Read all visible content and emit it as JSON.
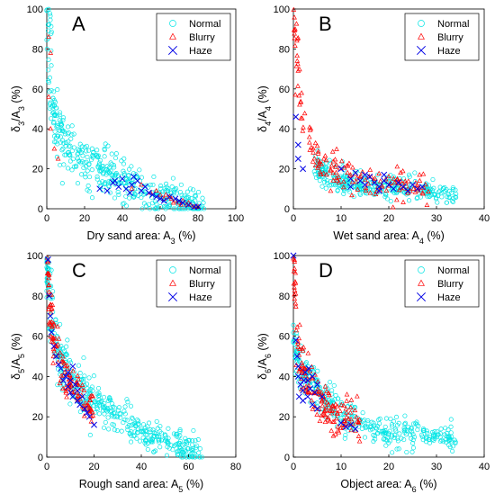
{
  "chart_data": [
    {
      "type": "scatter",
      "panel_label": "A",
      "xlabel": "Dry sand area: A",
      "xlabel_sub": "3",
      "xlabel_unit": " (%)",
      "ylabel": "δ",
      "ylabel_sub": "3",
      "ylabel_mid": "/A",
      "ylabel_sub2": "3",
      "ylabel_unit": " (%)",
      "xlim": [
        0,
        100
      ],
      "ylim": [
        0,
        100
      ],
      "xticks": [
        "0",
        "20",
        "40",
        "60",
        "80",
        "100"
      ],
      "yticks": [
        "0",
        "20",
        "40",
        "60",
        "80",
        "100"
      ],
      "legend_position": "top-right",
      "series": [
        {
          "name": "Normal",
          "color": "#00e5e5",
          "marker": "circle",
          "trend": [
            [
              0,
              100
            ],
            [
              1,
              85
            ],
            [
              2,
              62
            ],
            [
              4,
              46
            ],
            [
              8,
              34
            ],
            [
              15,
              27
            ],
            [
              25,
              21
            ],
            [
              35,
              16
            ],
            [
              45,
              12
            ],
            [
              55,
              8
            ],
            [
              62,
              6
            ],
            [
              70,
              4
            ],
            [
              78,
              2
            ],
            [
              82,
              0
            ]
          ],
          "count": 420,
          "spread": 7
        },
        {
          "name": "Blurry",
          "color": "#ff0000",
          "marker": "triangle",
          "points": [
            [
              1,
              86
            ],
            [
              2,
              78
            ],
            [
              1,
              56
            ],
            [
              2,
              40
            ],
            [
              4,
              30
            ],
            [
              6,
              25
            ],
            [
              45,
              10
            ],
            [
              50,
              12
            ],
            [
              55,
              8
            ],
            [
              60,
              7
            ],
            [
              62,
              5
            ],
            [
              65,
              6
            ],
            [
              68,
              4
            ],
            [
              70,
              3
            ],
            [
              72,
              4
            ],
            [
              74,
              2
            ],
            [
              76,
              2
            ],
            [
              78,
              1
            ],
            [
              80,
              1
            ],
            [
              66,
              5
            ],
            [
              58,
              9
            ],
            [
              63,
              7
            ],
            [
              67,
              3
            ],
            [
              71,
              2
            ],
            [
              75,
              3
            ]
          ]
        },
        {
          "name": "Haze",
          "color": "#0000e5",
          "marker": "x",
          "points": [
            [
              28,
              10
            ],
            [
              32,
              9
            ],
            [
              35,
              13
            ],
            [
              38,
              11
            ],
            [
              40,
              15
            ],
            [
              42,
              10
            ],
            [
              45,
              12
            ],
            [
              48,
              14
            ],
            [
              50,
              9
            ],
            [
              52,
              11
            ],
            [
              54,
              8
            ],
            [
              56,
              7
            ],
            [
              58,
              6
            ],
            [
              60,
              5
            ],
            [
              62,
              4
            ],
            [
              65,
              6
            ],
            [
              68,
              5
            ],
            [
              70,
              4
            ],
            [
              72,
              3
            ],
            [
              75,
              2
            ],
            [
              78,
              1
            ],
            [
              80,
              1
            ],
            [
              46,
              16
            ],
            [
              36,
              14
            ],
            [
              44,
              8
            ]
          ]
        }
      ]
    },
    {
      "type": "scatter",
      "panel_label": "B",
      "xlabel": "Wet sand area: A",
      "xlabel_sub": "4",
      "xlabel_unit": " (%)",
      "ylabel": "δ",
      "ylabel_sub": "4",
      "ylabel_mid": "/A",
      "ylabel_sub2": "4",
      "ylabel_unit": " (%)",
      "xlim": [
        0,
        40
      ],
      "ylim": [
        0,
        100
      ],
      "xticks": [
        "0",
        "10",
        "20",
        "30",
        "40"
      ],
      "yticks": [
        "0",
        "20",
        "40",
        "60",
        "80",
        "100"
      ],
      "legend_position": "top-right",
      "series": [
        {
          "name": "Normal",
          "color": "#00e5e5",
          "marker": "circle",
          "trend": [
            [
              5,
              20
            ],
            [
              8,
              16
            ],
            [
              12,
              14
            ],
            [
              16,
              12
            ],
            [
              20,
              11
            ],
            [
              25,
              10
            ],
            [
              30,
              8
            ],
            [
              34,
              7
            ]
          ],
          "count": 320,
          "spread": 4
        },
        {
          "name": "Blurry",
          "color": "#ff0000",
          "marker": "triangle",
          "trend": [
            [
              0,
              98
            ],
            [
              0.5,
              80
            ],
            [
              1,
              62
            ],
            [
              2,
              48
            ],
            [
              3,
              38
            ],
            [
              4,
              30
            ],
            [
              6,
              24
            ],
            [
              8,
              19
            ],
            [
              12,
              15
            ],
            [
              16,
              13
            ],
            [
              20,
              12
            ],
            [
              25,
              11
            ],
            [
              28,
              10
            ]
          ],
          "count": 160,
          "spread": 6
        },
        {
          "name": "Haze",
          "color": "#0000e5",
          "marker": "x",
          "points": [
            [
              0.5,
              46
            ],
            [
              1,
              32
            ],
            [
              1,
              25
            ],
            [
              2,
              20
            ],
            [
              10,
              20
            ],
            [
              12,
              15
            ],
            [
              13,
              18
            ],
            [
              14,
              14
            ],
            [
              15,
              12
            ],
            [
              16,
              16
            ],
            [
              17,
              13
            ],
            [
              18,
              11
            ],
            [
              19,
              14
            ],
            [
              20,
              12
            ],
            [
              21,
              10
            ],
            [
              22,
              13
            ],
            [
              23,
              11
            ],
            [
              24,
              9
            ],
            [
              25,
              12
            ],
            [
              26,
              10
            ],
            [
              27,
              11
            ],
            [
              15,
              17
            ],
            [
              19,
              17
            ],
            [
              12,
              11
            ],
            [
              18,
              9
            ]
          ]
        }
      ]
    },
    {
      "type": "scatter",
      "panel_label": "C",
      "xlabel": "Rough sand area: A",
      "xlabel_sub": "5",
      "xlabel_unit": " (%)",
      "ylabel": "δ",
      "ylabel_sub": "5",
      "ylabel_mid": "/A",
      "ylabel_sub2": "5",
      "ylabel_unit": " (%)",
      "xlim": [
        0,
        80
      ],
      "ylim": [
        0,
        100
      ],
      "xticks": [
        "0",
        "20",
        "40",
        "60",
        "80"
      ],
      "yticks": [
        "0",
        "20",
        "40",
        "60",
        "80",
        "100"
      ],
      "legend_position": "top-right",
      "series": [
        {
          "name": "Normal",
          "color": "#00e5e5",
          "marker": "circle",
          "trend": [
            [
              0,
              100
            ],
            [
              1,
              85
            ],
            [
              2,
              70
            ],
            [
              4,
              55
            ],
            [
              7,
              45
            ],
            [
              12,
              36
            ],
            [
              20,
              28
            ],
            [
              30,
              20
            ],
            [
              40,
              13
            ],
            [
              50,
              8
            ],
            [
              60,
              4
            ],
            [
              65,
              2
            ]
          ],
          "count": 420,
          "spread": 6
        },
        {
          "name": "Blurry",
          "color": "#ff0000",
          "marker": "triangle",
          "trend": [
            [
              0,
              100
            ],
            [
              0.5,
              90
            ],
            [
              1,
              78
            ],
            [
              2,
              65
            ],
            [
              3,
              55
            ],
            [
              5,
              48
            ],
            [
              8,
              40
            ],
            [
              12,
              33
            ],
            [
              16,
              27
            ],
            [
              20,
              22
            ]
          ],
          "count": 130,
          "spread": 7
        },
        {
          "name": "Haze",
          "color": "#0000e5",
          "marker": "x",
          "points": [
            [
              0.5,
              98
            ],
            [
              1,
              80
            ],
            [
              1.5,
              70
            ],
            [
              2,
              62
            ],
            [
              3,
              55
            ],
            [
              4,
              50
            ],
            [
              5,
              46
            ],
            [
              6,
              44
            ],
            [
              8,
              40
            ],
            [
              9,
              35
            ],
            [
              10,
              32
            ],
            [
              11,
              30
            ],
            [
              12,
              36
            ],
            [
              13,
              28
            ],
            [
              14,
              26
            ],
            [
              15,
              30
            ],
            [
              16,
              24
            ],
            [
              18,
              20
            ],
            [
              20,
              16
            ],
            [
              7,
              38
            ],
            [
              9,
              42
            ],
            [
              11,
              45
            ],
            [
              10,
              38
            ],
            [
              13,
              33
            ],
            [
              17,
              22
            ]
          ]
        }
      ]
    },
    {
      "type": "scatter",
      "panel_label": "D",
      "xlabel": "Object area: A",
      "xlabel_sub": "6",
      "xlabel_unit": " (%)",
      "ylabel": "δ",
      "ylabel_sub": "6",
      "ylabel_mid": "/A",
      "ylabel_sub2": "6",
      "ylabel_unit": " (%)",
      "xlim": [
        0,
        40
      ],
      "ylim": [
        0,
        100
      ],
      "xticks": [
        "0",
        "10",
        "20",
        "30",
        "40"
      ],
      "yticks": [
        "0",
        "20",
        "40",
        "60",
        "80",
        "100"
      ],
      "legend_position": "top-right",
      "series": [
        {
          "name": "Normal",
          "color": "#00e5e5",
          "marker": "circle",
          "trend": [
            [
              0,
              60
            ],
            [
              1,
              48
            ],
            [
              2,
              42
            ],
            [
              4,
              36
            ],
            [
              6,
              30
            ],
            [
              8,
              25
            ],
            [
              10,
              21
            ],
            [
              14,
              17
            ],
            [
              18,
              14
            ],
            [
              22,
              12
            ],
            [
              26,
              11
            ],
            [
              30,
              10
            ],
            [
              34,
              9
            ]
          ],
          "count": 360,
          "spread": 5
        },
        {
          "name": "Blurry",
          "color": "#ff0000",
          "marker": "triangle",
          "trend": [
            [
              0,
              100
            ],
            [
              0.3,
              85
            ],
            [
              0.6,
              70
            ],
            [
              1,
              55
            ],
            [
              2,
              42
            ],
            [
              3,
              36
            ],
            [
              4,
              32
            ],
            [
              6,
              25
            ],
            [
              8,
              22
            ],
            [
              10,
              20
            ],
            [
              12,
              18
            ],
            [
              14,
              16
            ]
          ],
          "count": 160,
          "spread": 7
        },
        {
          "name": "Haze",
          "color": "#0000e5",
          "marker": "x",
          "points": [
            [
              0,
              100
            ],
            [
              0.5,
              58
            ],
            [
              1,
              45
            ],
            [
              1,
              40
            ],
            [
              1.5,
              36
            ],
            [
              2,
              33
            ],
            [
              2,
              28
            ],
            [
              2.5,
              42
            ],
            [
              3,
              38
            ],
            [
              3,
              30
            ],
            [
              3.5,
              34
            ],
            [
              4,
              40
            ],
            [
              4,
              26
            ],
            [
              4.5,
              32
            ],
            [
              5,
              36
            ],
            [
              5,
              24
            ],
            [
              6,
              30
            ],
            [
              0.8,
              50
            ],
            [
              1.2,
              30
            ],
            [
              2.2,
              38
            ],
            [
              3.2,
              44
            ],
            [
              10,
              17
            ],
            [
              11,
              15
            ],
            [
              12,
              16
            ],
            [
              13,
              14
            ]
          ]
        }
      ]
    }
  ]
}
